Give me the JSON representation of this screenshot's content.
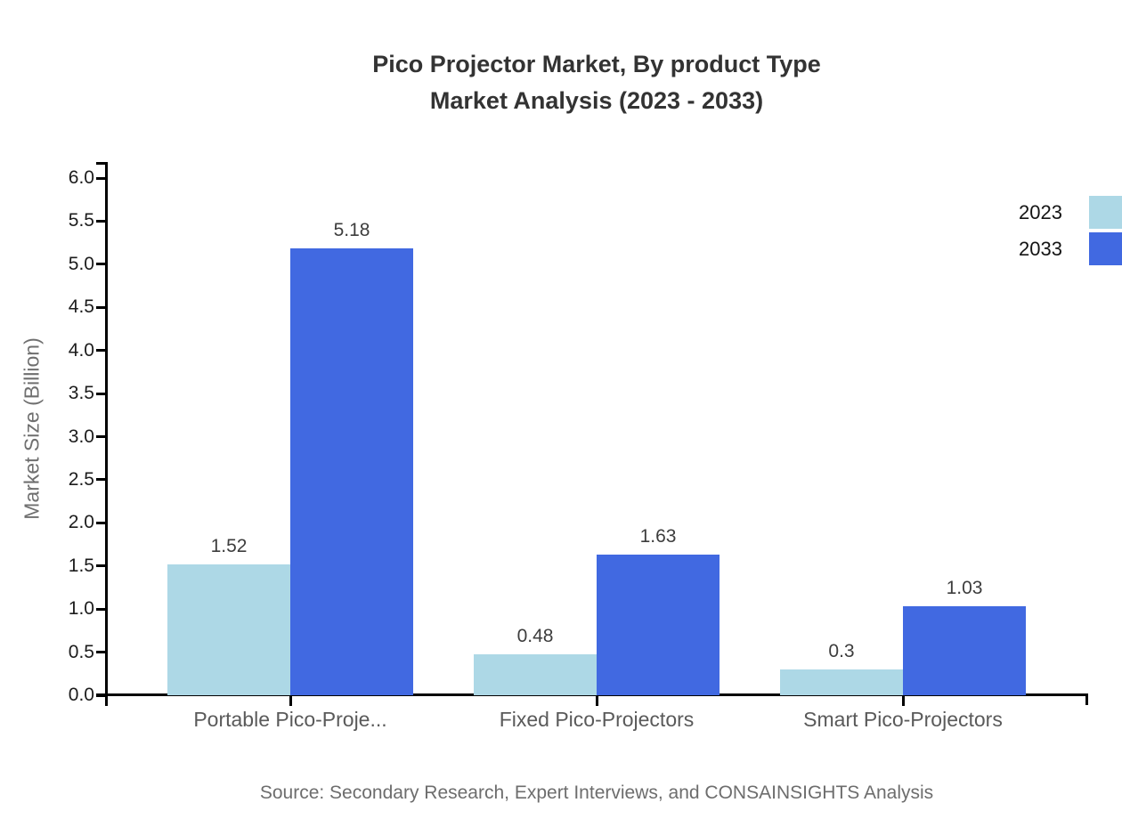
{
  "title": {
    "line1": "Pico Projector Market, By product Type",
    "line2": "Market Analysis (2023 - 2033)"
  },
  "chart_data": {
    "type": "bar",
    "categories": [
      "Portable Pico-Proje...",
      "Fixed Pico-Projectors",
      "Smart Pico-Projectors"
    ],
    "series": [
      {
        "name": "2023",
        "color": "#ADD8E6",
        "values": [
          1.52,
          0.48,
          0.3
        ]
      },
      {
        "name": "2033",
        "color": "#4169E1",
        "values": [
          5.18,
          1.63,
          1.03
        ]
      }
    ],
    "title": "Pico Projector Market, By product Type Market Analysis (2023 - 2033)",
    "xlabel": "",
    "ylabel": "Market Size (Billion)",
    "ylim": [
      0.0,
      6.0
    ],
    "ytick_step": 0.5,
    "grid": false,
    "legend_position": "top-right",
    "value_labels_shown": true
  },
  "footer": {
    "source": "Source: Secondary Research, Expert Interviews, and CONSAINSIGHTS Analysis"
  },
  "colors": {
    "series_2023": "#ADD8E6",
    "series_2033": "#4169E1",
    "axis": "#000000",
    "title_text": "#333333",
    "tick_text": "#1c1c1c",
    "category_text": "#5a5a5a",
    "source_text": "#6d6d6d"
  }
}
